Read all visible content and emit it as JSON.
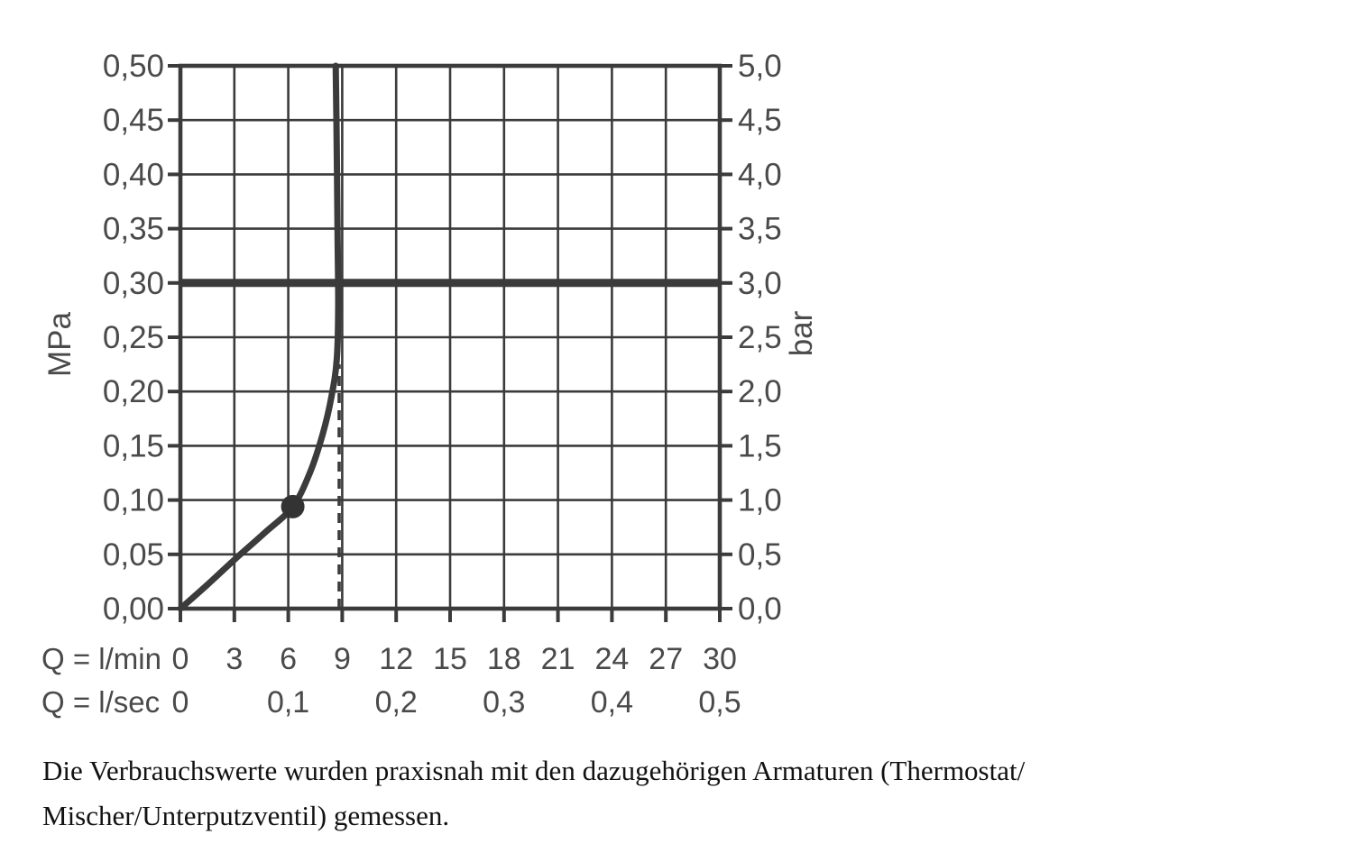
{
  "chart_data": {
    "type": "line",
    "title": "",
    "grid": true,
    "x_axis": {
      "min": 0,
      "max": 30,
      "grid_values": [
        0,
        3,
        6,
        9,
        12,
        15,
        18,
        21,
        24,
        27,
        30
      ],
      "rows": [
        {
          "label": "Q = l/min",
          "tick_values": [
            0,
            3,
            6,
            9,
            12,
            15,
            18,
            21,
            24,
            27,
            30
          ],
          "tick_labels": [
            "0",
            "3",
            "6",
            "9",
            "12",
            "15",
            "18",
            "21",
            "24",
            "27",
            "30"
          ]
        },
        {
          "label": "Q = l/sec",
          "tick_values": [
            0,
            6,
            12,
            18,
            24,
            30
          ],
          "tick_labels": [
            "0",
            "0,1",
            "0,2",
            "0,3",
            "0,4",
            "0,5"
          ]
        }
      ]
    },
    "y_axis_left": {
      "unit": "MPa",
      "min": 0,
      "max": 0.5,
      "tick_values": [
        0,
        0.05,
        0.1,
        0.15,
        0.2,
        0.25,
        0.3,
        0.35,
        0.4,
        0.45,
        0.5
      ],
      "tick_labels": [
        "0,00",
        "0,05",
        "0,10",
        "0,15",
        "0,20",
        "0,25",
        "0,30",
        "0,35",
        "0,40",
        "0,45",
        "0,50"
      ]
    },
    "y_axis_right": {
      "unit": "bar",
      "min": 0,
      "max": 5,
      "tick_values": [
        0,
        0.5,
        1.0,
        1.5,
        2.0,
        2.5,
        3.0,
        3.5,
        4.0,
        4.5,
        5.0
      ],
      "tick_labels": [
        "0,0",
        "0,5",
        "1,0",
        "1,5",
        "2,0",
        "2,5",
        "3,0",
        "3,5",
        "4,0",
        "4,5",
        "5,0"
      ]
    },
    "reference_line": {
      "mpa": 0.3,
      "bar": 3.0
    },
    "dashed_line": {
      "lmin": 8.83,
      "from_mpa": 0.0,
      "to_mpa": 0.225
    },
    "marker_point": {
      "lmin": 6.25,
      "mpa": 0.094
    },
    "series": [
      {
        "name": "flow-pressure-curve",
        "points": [
          [
            0,
            0
          ],
          [
            1.5,
            0.022
          ],
          [
            3.2,
            0.048
          ],
          [
            4.7,
            0.07
          ],
          [
            6.25,
            0.094
          ],
          [
            7.2,
            0.125
          ],
          [
            7.9,
            0.16
          ],
          [
            8.4,
            0.195
          ],
          [
            8.7,
            0.23
          ],
          [
            8.78,
            0.28
          ],
          [
            8.74,
            0.35
          ],
          [
            8.68,
            0.45
          ],
          [
            8.64,
            0.5
          ]
        ]
      }
    ]
  },
  "caption": {
    "lines": [
      "Die Verbrauchswerte wurden praxisnah mit den dazugehörigen Armaturen (Thermostat/",
      "Mischer/Unterputzventil) gemessen."
    ]
  },
  "colors": {
    "line": "#3b3b3b",
    "text": "#4a4a4a",
    "caption_text": "#121212",
    "background": "#ffffff"
  }
}
